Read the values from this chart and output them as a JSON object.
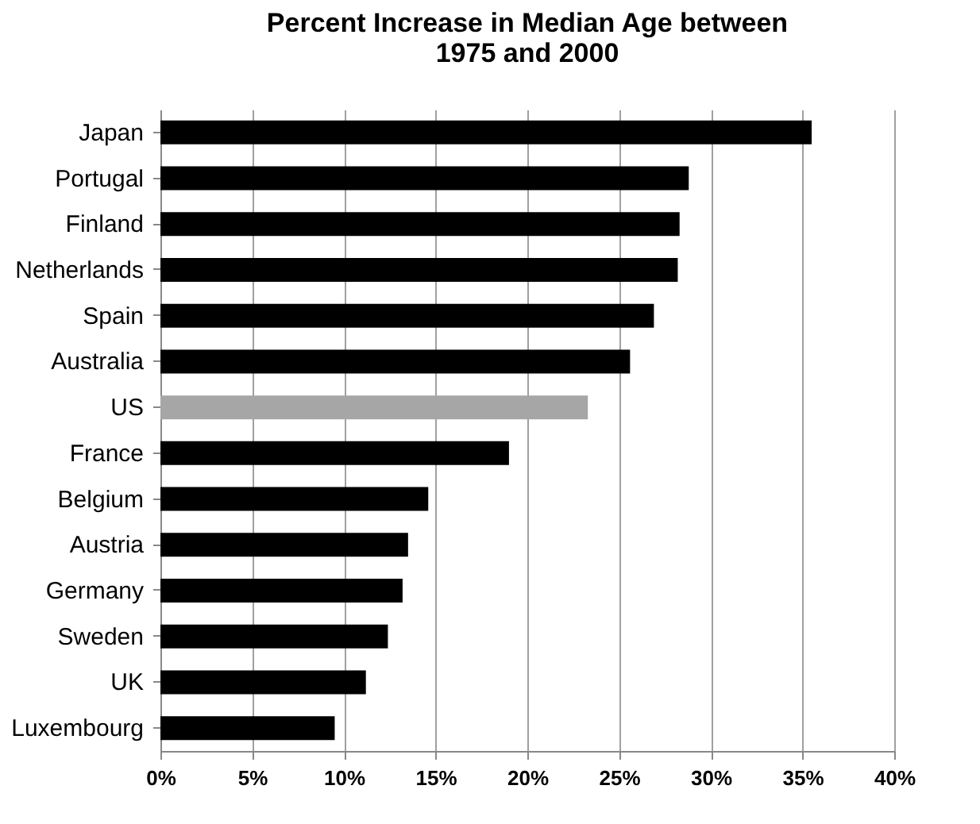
{
  "chart_data": {
    "type": "bar",
    "orientation": "horizontal",
    "title": [
      "Percent Increase in Median Age between",
      "1975 and 2000"
    ],
    "categories": [
      "Japan",
      "Portugal",
      "Finland",
      "Netherlands",
      "Spain",
      "Australia",
      "US",
      "France",
      "Belgium",
      "Austria",
      "Germany",
      "Sweden",
      "UK",
      "Luxembourg"
    ],
    "values": [
      35.5,
      28.8,
      28.3,
      28.2,
      26.9,
      25.6,
      23.3,
      19.0,
      14.6,
      13.5,
      13.2,
      12.4,
      11.2,
      9.5
    ],
    "colors": [
      "#000000",
      "#000000",
      "#000000",
      "#000000",
      "#000000",
      "#000000",
      "#a6a6a6",
      "#000000",
      "#000000",
      "#000000",
      "#000000",
      "#000000",
      "#000000",
      "#000000"
    ],
    "xlim": [
      0,
      40
    ],
    "xticks": [
      {
        "value": 0,
        "label": "0%"
      },
      {
        "value": 5,
        "label": "5%"
      },
      {
        "value": 10,
        "label": "10%"
      },
      {
        "value": 15,
        "label": "15%"
      },
      {
        "value": 20,
        "label": "20%"
      },
      {
        "value": 25,
        "label": "25%"
      },
      {
        "value": 30,
        "label": "30%"
      },
      {
        "value": 35,
        "label": "35%"
      },
      {
        "value": 40,
        "label": "40%"
      }
    ],
    "grid": "x"
  }
}
